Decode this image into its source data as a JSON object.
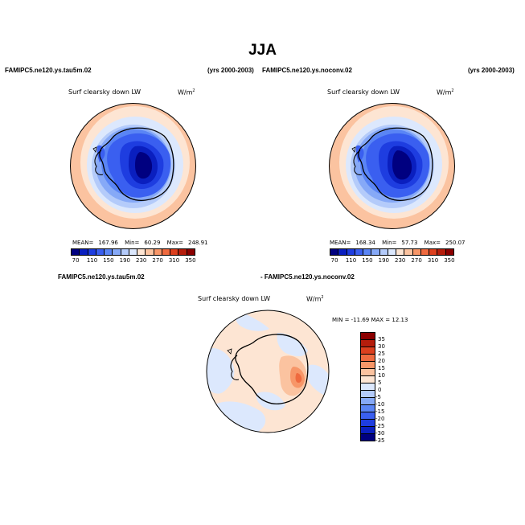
{
  "figure": {
    "title": "JJA"
  },
  "panel_left": {
    "case": "FAMIPC5.ne120.ys.tau5m.02",
    "years": "(yrs 2000-2003)",
    "variable": "Surf clearsky down LW",
    "units": "W/m",
    "units_exp": "2",
    "mean_label": "MEAN=",
    "mean": "167.96",
    "min_label": "Min=",
    "min": "60.29",
    "max_label": "Max=",
    "max": "248.91"
  },
  "panel_right": {
    "case": "FAMIPC5.ne120.ys.noconv.02",
    "years": "(yrs 2000-2003)",
    "variable": "Surf clearsky down LW",
    "units": "W/m",
    "units_exp": "2",
    "mean_label": "MEAN=",
    "mean": "168.34",
    "min_label": "Min=",
    "min": "57.73",
    "max_label": "Max=",
    "max": "250.07"
  },
  "panel_diff": {
    "case_a": "FAMIPC5.ne120.ys.tau5m.02",
    "case_b": "- FAMIPC5.ne120.ys.noconv.02",
    "variable": "Surf clearsky down LW",
    "units": "W/m",
    "units_exp": "2",
    "minmax": "MIN = -11.69 MAX =  12.13"
  },
  "colorbar_abs": {
    "colors": [
      "#000080",
      "#0a1fbf",
      "#1e3de0",
      "#3a5ff0",
      "#5a85f5",
      "#86a9f7",
      "#b4cbfa",
      "#dce8fd",
      "#fde5d3",
      "#fbc3a0",
      "#f79668",
      "#ef6a3f",
      "#dc3f1e",
      "#b51d0c",
      "#8b0000"
    ],
    "ticks": [
      "70",
      "110",
      "150",
      "190",
      "230",
      "270",
      "310",
      "350"
    ]
  },
  "colorbar_diff": {
    "colors": [
      "#8b0000",
      "#b51d0c",
      "#dc3f1e",
      "#ef6a3f",
      "#f79668",
      "#fbc3a0",
      "#fde5d3",
      "#dce8fd",
      "#b4cbfa",
      "#86a9f7",
      "#5a85f5",
      "#3a5ff0",
      "#1e3de0",
      "#0a1fbf",
      "#000080"
    ],
    "ticks": [
      "35",
      "30",
      "25",
      "20",
      "15",
      "10",
      "5",
      "0",
      "-5",
      "-10",
      "-15",
      "-20",
      "-25",
      "-30",
      "-35"
    ]
  },
  "icons": {
    "map": "south-polar-stereographic-map-icon"
  }
}
